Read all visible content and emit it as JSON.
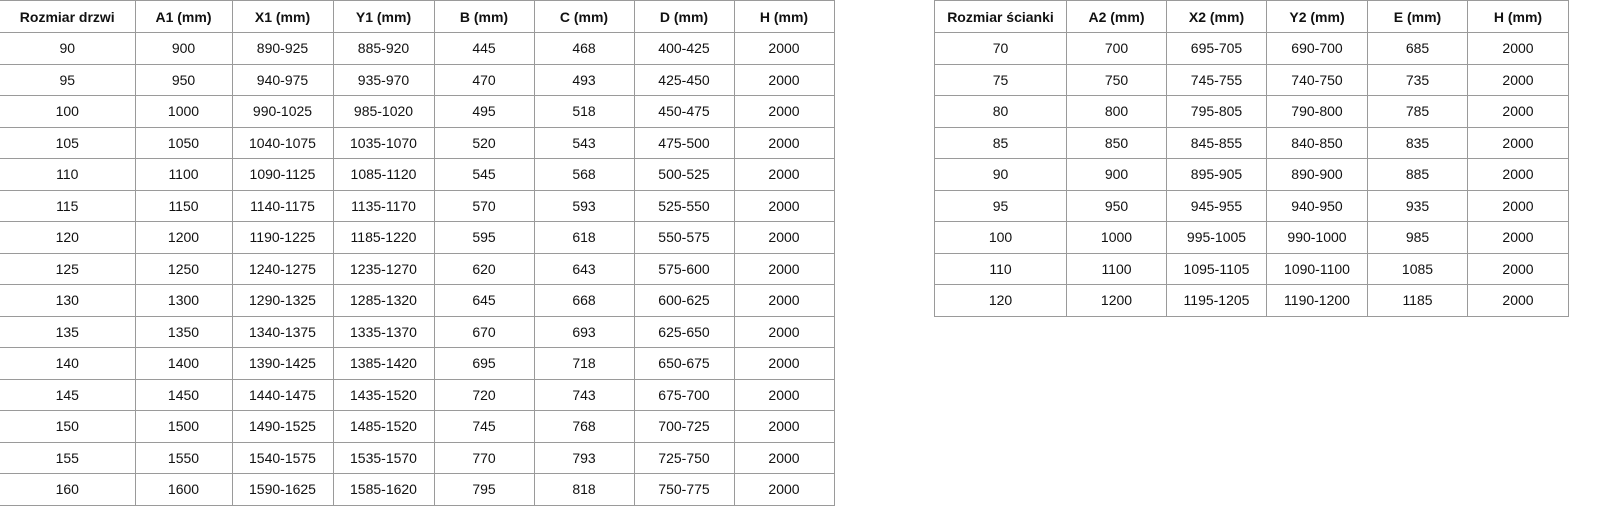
{
  "doors_table": {
    "headers": [
      "Rozmiar drzwi",
      "A1 (mm)",
      "X1 (mm)",
      "Y1 (mm)",
      "B (mm)",
      "C (mm)",
      "D (mm)",
      "H (mm)"
    ],
    "rows": [
      [
        "90",
        "900",
        "890-925",
        "885-920",
        "445",
        "468",
        "400-425",
        "2000"
      ],
      [
        "95",
        "950",
        "940-975",
        "935-970",
        "470",
        "493",
        "425-450",
        "2000"
      ],
      [
        "100",
        "1000",
        "990-1025",
        "985-1020",
        "495",
        "518",
        "450-475",
        "2000"
      ],
      [
        "105",
        "1050",
        "1040-1075",
        "1035-1070",
        "520",
        "543",
        "475-500",
        "2000"
      ],
      [
        "110",
        "1100",
        "1090-1125",
        "1085-1120",
        "545",
        "568",
        "500-525",
        "2000"
      ],
      [
        "115",
        "1150",
        "1140-1175",
        "1135-1170",
        "570",
        "593",
        "525-550",
        "2000"
      ],
      [
        "120",
        "1200",
        "1190-1225",
        "1185-1220",
        "595",
        "618",
        "550-575",
        "2000"
      ],
      [
        "125",
        "1250",
        "1240-1275",
        "1235-1270",
        "620",
        "643",
        "575-600",
        "2000"
      ],
      [
        "130",
        "1300",
        "1290-1325",
        "1285-1320",
        "645",
        "668",
        "600-625",
        "2000"
      ],
      [
        "135",
        "1350",
        "1340-1375",
        "1335-1370",
        "670",
        "693",
        "625-650",
        "2000"
      ],
      [
        "140",
        "1400",
        "1390-1425",
        "1385-1420",
        "695",
        "718",
        "650-675",
        "2000"
      ],
      [
        "145",
        "1450",
        "1440-1475",
        "1435-1520",
        "720",
        "743",
        "675-700",
        "2000"
      ],
      [
        "150",
        "1500",
        "1490-1525",
        "1485-1520",
        "745",
        "768",
        "700-725",
        "2000"
      ],
      [
        "155",
        "1550",
        "1540-1575",
        "1535-1570",
        "770",
        "793",
        "725-750",
        "2000"
      ],
      [
        "160",
        "1600",
        "1590-1625",
        "1585-1620",
        "795",
        "818",
        "750-775",
        "2000"
      ]
    ]
  },
  "walls_table": {
    "headers": [
      "Rozmiar ścianki",
      "A2 (mm)",
      "X2 (mm)",
      "Y2 (mm)",
      "E (mm)",
      "H (mm)"
    ],
    "rows": [
      [
        "70",
        "700",
        "695-705",
        "690-700",
        "685",
        "2000"
      ],
      [
        "75",
        "750",
        "745-755",
        "740-750",
        "735",
        "2000"
      ],
      [
        "80",
        "800",
        "795-805",
        "790-800",
        "785",
        "2000"
      ],
      [
        "85",
        "850",
        "845-855",
        "840-850",
        "835",
        "2000"
      ],
      [
        "90",
        "900",
        "895-905",
        "890-900",
        "885",
        "2000"
      ],
      [
        "95",
        "950",
        "945-955",
        "940-950",
        "935",
        "2000"
      ],
      [
        "100",
        "1000",
        "995-1005",
        "990-1000",
        "985",
        "2000"
      ],
      [
        "110",
        "1100",
        "1095-1105",
        "1090-1100",
        "1085",
        "2000"
      ],
      [
        "120",
        "1200",
        "1195-1205",
        "1190-1200",
        "1185",
        "2000"
      ]
    ]
  }
}
